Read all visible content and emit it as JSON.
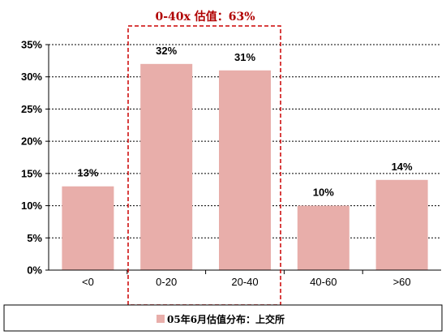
{
  "chart_data": {
    "type": "bar",
    "categories": [
      "<0",
      "0-20",
      "20-40",
      "40-60",
      ">60"
    ],
    "series": [
      {
        "name": "05年6月估值分布：上交所",
        "values": [
          13,
          32,
          31,
          10,
          14
        ]
      }
    ],
    "data_labels": [
      "13%",
      "32%",
      "31%",
      "10%",
      "14%"
    ],
    "y_ticks": [
      "0%",
      "5%",
      "10%",
      "15%",
      "20%",
      "25%",
      "30%",
      "35%"
    ],
    "ylim": [
      0,
      35
    ],
    "grid": true,
    "annotation": "0-40x 估值：63%",
    "legend_position": "bottom",
    "colors": {
      "bar": "#e8aeaa",
      "annotation": "#b00000"
    }
  }
}
